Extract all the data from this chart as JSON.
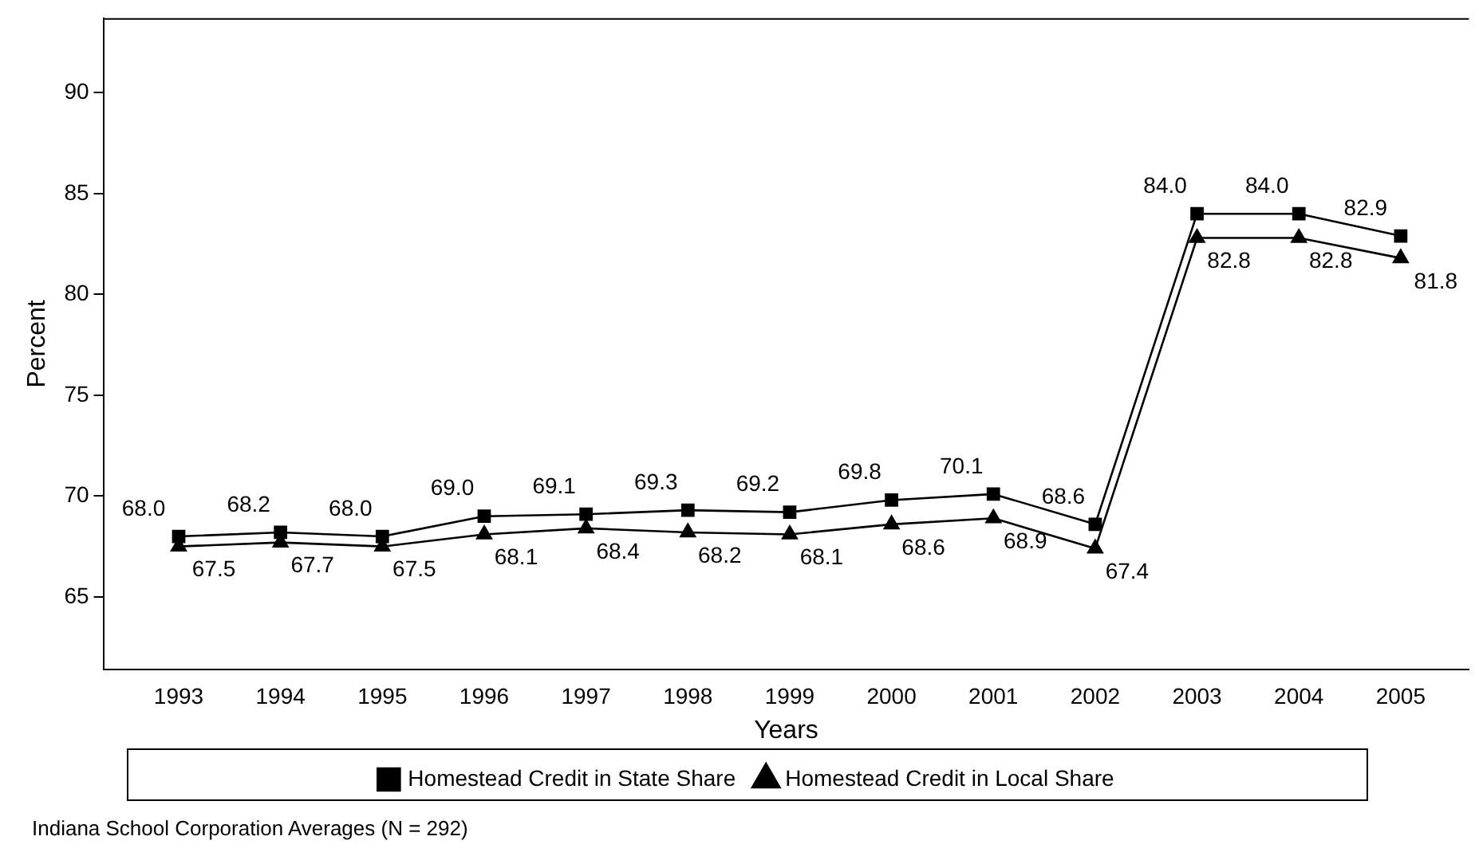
{
  "chart_data": {
    "type": "line",
    "xlabel": "Years",
    "ylabel": "Percent",
    "x": [
      1993,
      1994,
      1995,
      1996,
      1997,
      1998,
      1999,
      2000,
      2001,
      2002,
      2003,
      2004,
      2005
    ],
    "xlim": [
      1992.26,
      2005.67
    ],
    "xticks": [
      1993,
      1994,
      1995,
      1996,
      1997,
      1998,
      1999,
      2000,
      2001,
      2002,
      2003,
      2004,
      2005
    ],
    "ylim": [
      61.4,
      93.7
    ],
    "yticks": [
      65,
      70,
      75,
      80,
      85,
      90
    ],
    "series": [
      {
        "name": "Homestead Credit in State Share",
        "color": "#000000",
        "marker": "square",
        "values": [
          68.0,
          68.2,
          68.0,
          69.0,
          69.1,
          69.3,
          69.2,
          69.8,
          70.1,
          68.6,
          84.0,
          84.0,
          82.9
        ],
        "value_labels": [
          "68.0",
          "68.2",
          "68.0",
          "69.0",
          "69.1",
          "69.3",
          "69.2",
          "69.8",
          "70.1",
          "68.6",
          "84.0",
          "84.0",
          "82.9"
        ]
      },
      {
        "name": "Homestead Credit in Local Share",
        "color": "#000000",
        "marker": "triangle",
        "values": [
          67.5,
          67.7,
          67.5,
          68.1,
          68.4,
          68.2,
          68.1,
          68.6,
          68.9,
          67.4,
          82.8,
          82.8,
          81.8
        ],
        "value_labels": [
          "67.5",
          "67.7",
          "67.5",
          "68.1",
          "68.4",
          "68.2",
          "68.1",
          "68.6",
          "68.9",
          "67.4",
          "82.8",
          "82.8",
          "81.8"
        ]
      }
    ],
    "grid": false,
    "legend": "bottom",
    "line_style": "solid",
    "annotations": [
      "Indiana School Corporation Averages (N = 292)"
    ]
  }
}
